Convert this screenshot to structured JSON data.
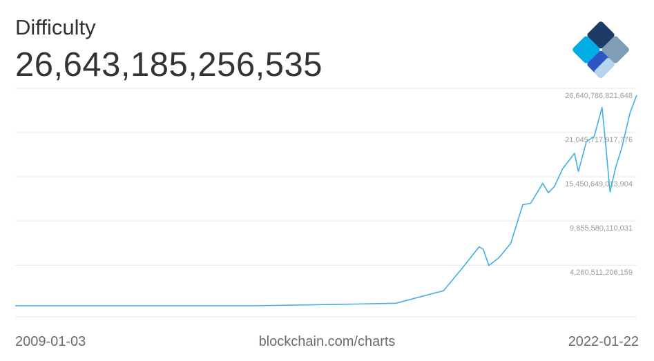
{
  "header": {
    "title": "Difficulty",
    "current_value": "26,643,185,256,535"
  },
  "footer": {
    "start_date": "2009-01-03",
    "source": "blockchain.com/charts",
    "end_date": "2022-01-22"
  },
  "logo": {
    "icon": "blockchain-logo-icon",
    "colors": [
      "#1c3b66",
      "#7f9db3",
      "#2c55c6",
      "#00aee6",
      "#b3d6ee"
    ]
  },
  "colors": {
    "line": "#3fb0e0",
    "grid": "#e6e6e6",
    "tick_text": "#9a9a9a"
  },
  "chart_data": {
    "type": "line",
    "title": "Difficulty",
    "x_range": [
      "2009-01-03",
      "2022-01-22"
    ],
    "ylim": [
      0,
      26643185256535
    ],
    "yticks": [
      {
        "value": 4260511206159,
        "label": "4,260,511,206,159"
      },
      {
        "value": 9855580110031,
        "label": "9,855,580,110,031"
      },
      {
        "value": 15450649013904,
        "label": "15,450,649,013,904"
      },
      {
        "value": 21045717917776,
        "label": "21,045,717,917,776"
      },
      {
        "value": 26640786821648,
        "label": "26,640,786,821,648"
      }
    ],
    "grid": true,
    "series": [
      {
        "x": [
          "2009-01-03",
          "2012-01-01",
          "2014-01-01",
          "2016-01-01",
          "2017-01-01",
          "2018-01-01",
          "2018-06-01",
          "2018-10-01",
          "2018-11-01",
          "2018-12-15",
          "2019-03-01",
          "2019-06-01",
          "2019-09-01",
          "2019-11-01",
          "2020-02-01",
          "2020-03-15",
          "2020-05-01",
          "2020-07-01",
          "2020-10-01",
          "2020-11-01",
          "2021-01-01",
          "2021-03-01",
          "2021-05-01",
          "2021-06-01",
          "2021-07-01",
          "2021-08-15",
          "2021-10-01",
          "2021-12-01",
          "2022-01-22"
        ],
        "values": [
          1,
          1500000,
          1400000000,
          200000000000,
          320000000000,
          1900000000000,
          4900000000000,
          7450000000000,
          7180000000000,
          5100000000000,
          6070000000000,
          7900000000000,
          12800000000000,
          12970000000000,
          15500000000000,
          14300000000000,
          15100000000000,
          17300000000000,
          19300000000000,
          17000000000000,
          20800000000000,
          21400000000000,
          25100000000000,
          19900000000000,
          14400000000000,
          17600000000000,
          20100000000000,
          24400000000000,
          26643185256535
        ]
      }
    ]
  }
}
